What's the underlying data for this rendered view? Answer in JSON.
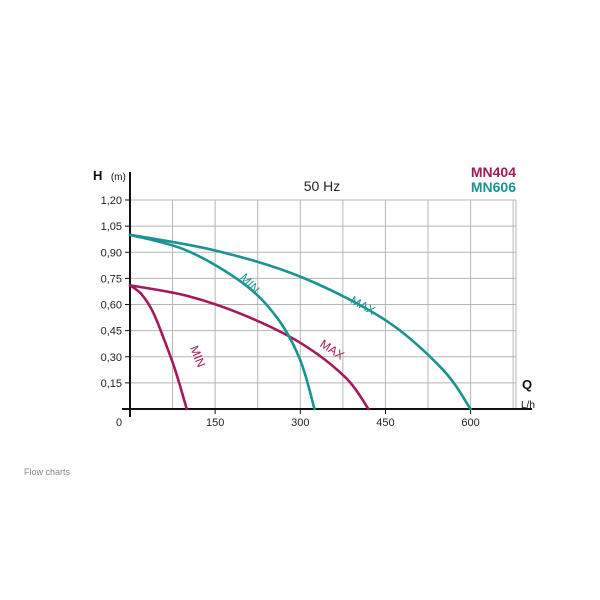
{
  "chart_data": {
    "type": "line",
    "title": "50 Hz",
    "ylabel_symbol": "H",
    "ylabel_unit": "(m)",
    "xlabel_symbol": "Q",
    "xlabel_unit": "L/h",
    "xlim": [
      0,
      680
    ],
    "ylim": [
      0,
      1.2
    ],
    "x_ticks": [
      0,
      150,
      300,
      450,
      600
    ],
    "x_tick_labels": [
      "0",
      "150",
      "300",
      "450",
      "600"
    ],
    "y_ticks": [
      0.15,
      0.3,
      0.45,
      0.6,
      0.75,
      0.9,
      1.05,
      1.2
    ],
    "y_tick_labels": [
      "0,15",
      "0,30",
      "0,45",
      "0,60",
      "0,75",
      "0,90",
      "1,05",
      "1,20"
    ],
    "grid": true,
    "legend": [
      {
        "label": "MN404",
        "color": "#a3195b"
      },
      {
        "label": "MN606",
        "color": "#1a9490"
      }
    ],
    "series": [
      {
        "model": "MN404",
        "label": "MIN",
        "color": "#a3195b",
        "x": [
          0,
          20,
          40,
          60,
          80,
          100
        ],
        "y": [
          0.71,
          0.66,
          0.56,
          0.4,
          0.22,
          0.0
        ]
      },
      {
        "model": "MN404",
        "label": "MAX",
        "color": "#a3195b",
        "x": [
          0,
          100,
          200,
          300,
          380,
          420
        ],
        "y": [
          0.71,
          0.65,
          0.54,
          0.38,
          0.18,
          0.0
        ]
      },
      {
        "model": "MN606",
        "label": "MIN",
        "color": "#1a9490",
        "x": [
          0,
          100,
          200,
          260,
          300,
          325
        ],
        "y": [
          1.0,
          0.91,
          0.72,
          0.52,
          0.28,
          0.0
        ]
      },
      {
        "model": "MN606",
        "label": "MAX",
        "color": "#1a9490",
        "x": [
          0,
          150,
          300,
          450,
          550,
          600
        ],
        "y": [
          1.0,
          0.91,
          0.76,
          0.51,
          0.23,
          0.0
        ]
      }
    ]
  },
  "caption": "Flow charts"
}
